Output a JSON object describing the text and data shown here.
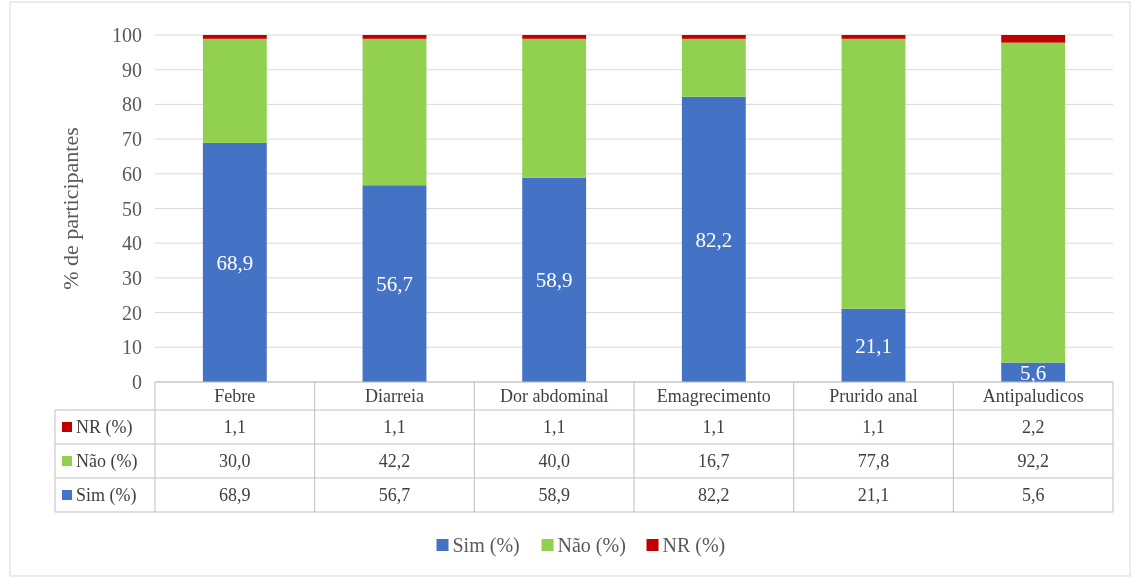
{
  "chart_data": {
    "type": "bar",
    "stacked": true,
    "ylabel": "% de participantes",
    "categories": [
      "Febre",
      "Diarreia",
      "Dor abdominal",
      "Emagrecimento",
      "Prurido anal",
      "Antipaludicos"
    ],
    "series": [
      {
        "name": "Sim (%)",
        "color": "#4472c4",
        "values": [
          68.9,
          56.7,
          58.9,
          82.2,
          21.1,
          5.6
        ],
        "value_labels": [
          "68,9",
          "56,7",
          "58,9",
          "82,2",
          "21,1",
          "5,6"
        ]
      },
      {
        "name": "Não (%)",
        "color": "#92d050",
        "values": [
          30.0,
          42.2,
          40.0,
          16.7,
          77.8,
          92.2
        ],
        "value_labels": [
          "30,0",
          "42,2",
          "40,0",
          "16,7",
          "77,8",
          "92,2"
        ]
      },
      {
        "name": "NR (%)",
        "color": "#c00000",
        "values": [
          1.1,
          1.1,
          1.1,
          1.1,
          1.1,
          2.2
        ],
        "value_labels": [
          "1,1",
          "1,1",
          "1,1",
          "1,1",
          "1,1",
          "2,2"
        ]
      }
    ],
    "ylim": [
      0,
      100
    ],
    "yticks": [
      0,
      10,
      20,
      30,
      40,
      50,
      60,
      70,
      80,
      90,
      100
    ],
    "grid": "y",
    "legend": "bottom"
  }
}
